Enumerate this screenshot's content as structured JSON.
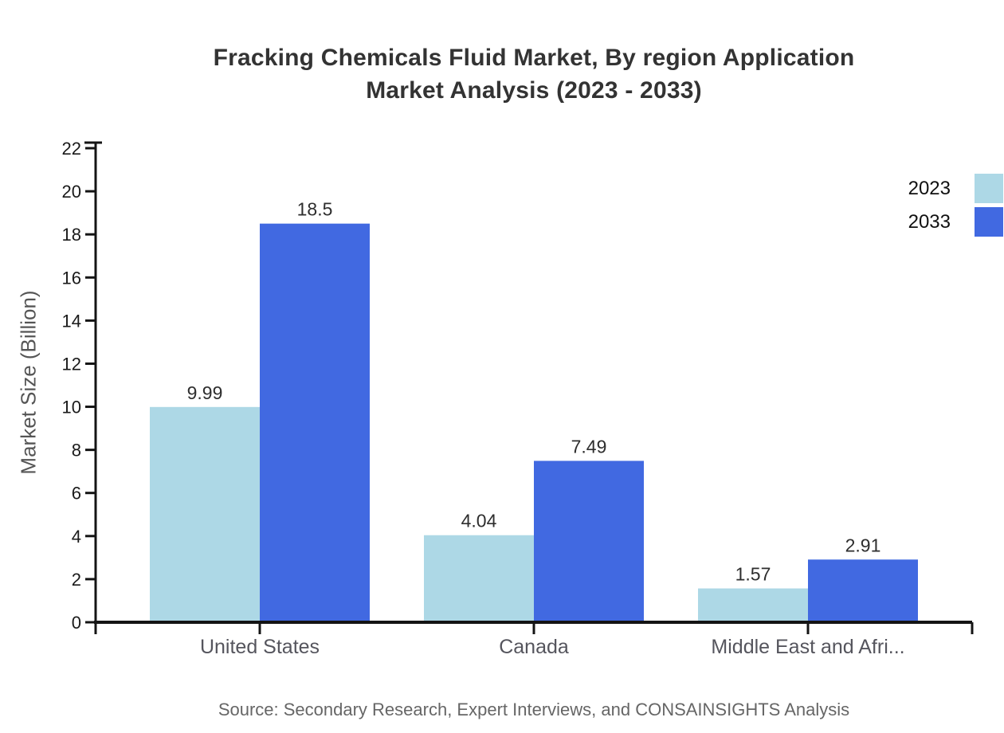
{
  "title": {
    "line1": "Fracking Chemicals Fluid Market, By region Application",
    "line2": "Market Analysis (2023 - 2033)"
  },
  "y_axis_title": "Market Size (Billion)",
  "legend": {
    "items": [
      {
        "label": "2023",
        "color": "#ADD8E6"
      },
      {
        "label": "2033",
        "color": "#4169E1"
      }
    ]
  },
  "source_note": "Source: Secondary Research, Expert Interviews, and CONSAINSIGHTS Analysis",
  "chart_data": {
    "type": "bar",
    "title": "Fracking Chemicals Fluid Market, By region Application Market Analysis (2023 - 2033)",
    "categories": [
      "United States",
      "Canada",
      "Middle East and Afri..."
    ],
    "series": [
      {
        "name": "2023",
        "color": "#ADD8E6",
        "values": [
          9.99,
          4.04,
          1.57
        ]
      },
      {
        "name": "2033",
        "color": "#4169E1",
        "values": [
          18.5,
          7.49,
          2.91
        ]
      }
    ],
    "value_labels": [
      "9.99",
      "18.5",
      "4.04",
      "7.49",
      "1.57",
      "2.91"
    ],
    "xlabel": "",
    "ylabel": "Market Size (Billion)",
    "ylim": [
      0,
      22
    ],
    "yticks": [
      0,
      2,
      4,
      6,
      8,
      10,
      12,
      14,
      16,
      18,
      20,
      22
    ],
    "grid": false,
    "legend_position": "top-right"
  }
}
